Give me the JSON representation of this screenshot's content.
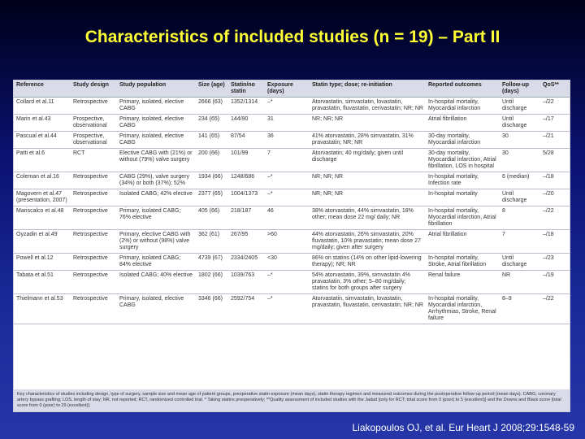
{
  "title": "Characteristics of included studies (n = 19) – Part II",
  "table": {
    "headers": [
      "Reference",
      "Study design",
      "Study population",
      "Size (age)",
      "Statin/no statin",
      "Exposure (days)",
      "Statin type; dose; re-initiation",
      "Reported outcomes",
      "Follow-up (days)",
      "QoS**"
    ],
    "rows": [
      [
        "Collard et al.11",
        "Retrospective",
        "Primary, isolated, elective CABG",
        "2666 (63)",
        "1352/1314",
        "–*",
        "Atorvastatin, simvastatin, lovastatin, pravastatin, fluvastatin, cerivastatin; NR; NR",
        "In-hospital mortality, Myocardial infarction",
        "Until discharge",
        "–/22"
      ],
      [
        "Marin et al.43",
        "Prospective, observational",
        "Primary, isolated, elective CABG",
        "234 (65)",
        "144/90",
        "31",
        "NR; NR; NR",
        "Atrial fibrillation",
        "Until discharge",
        "–/17"
      ],
      [
        "Pascual et al.44",
        "Prospective, observational",
        "Primary, isolated, elective CABG",
        "141 (65)",
        "87/54",
        "36",
        "41% atorvastatin, 28% simvastatin, 31% pravastatin; NR; NR",
        "30-day mortality, Myocardial infarction",
        "30",
        "–/21"
      ],
      [
        "Patti et al.6",
        "RCT",
        "Elective CABG with (21%) or without (79%) valve surgery",
        "200 (66)",
        "101/99",
        "7",
        "Atorvastatin; 40 mg/daily; given until discharge",
        "30-day mortality, Myocardial infarction, Atrial fibrillation, LOS in hospital",
        "30",
        "5/28"
      ],
      [
        "Coleman et al.16",
        "Retrospective",
        "CABG (29%), valve surgery (34%) or both (37%); 52%",
        "1934 (66)",
        "1248/686",
        "–*",
        "NR; NR; NR",
        "In-hospital mortality, Infection rate",
        "6 (median)",
        "–/18"
      ],
      [
        "Magovern et al.47 (presentation, 2007)",
        "Retrospective",
        "Isolated CABG; 42% elective",
        "2377 (65)",
        "1004/1373",
        "–*",
        "NR; NR; NR",
        "In-hospital mortality",
        "Until discharge",
        "–/20"
      ],
      [
        "Mariscalco et al.48",
        "Retrospective",
        "Primary, isolated CABG; 76% elective",
        "405 (66)",
        "218/187",
        "46",
        "38% atorvastatin, 44% simvastatin, 18% other; mean dose 22 mg/ daily; NR",
        "In-hospital mortality, Myocardial infarction, Atrial fibrillation",
        "8",
        "–/22"
      ],
      [
        "Oyzadin et al.49",
        "Retrospective",
        "Primary, elective CABG with (2%) or without (98%) valve surgery",
        "362 (61)",
        "267/95",
        ">60",
        "44% atorvastatin, 26% simvastatin, 20% fluvastatin, 10% pravastatin; mean dose 27 mg/daily; given after surgery",
        "Atrial fibrillation",
        "7",
        "–/18"
      ],
      [
        "Powell et al.12",
        "Retrospective",
        "Primary, isolated CABG; 84% elective",
        "4739 (67)",
        "2334/2405",
        "<30",
        "86% on statins (14% on other lipid-lowering therapy); NR; NR",
        "In-hospital mortality, Stroke, Atrial fibrillation",
        "Until discharge",
        "–/23"
      ],
      [
        "Tabata et al.51",
        "Retrospective",
        "Isolated CABG; 40% elective",
        "1802 (66)",
        "1039/763",
        "–*",
        "54% atorvastatin, 39%, simvastatin 4% pravastatin, 3% other; 5–80 mg/daily; statins for both groups after surgery",
        "Renal failure",
        "NR",
        "–/19"
      ],
      [
        "Thielmann et al.53",
        "Retrospective",
        "Primary, isolated, elective CABG",
        "3346 (66)",
        "2592/754",
        "–*",
        "Atorvastatin, simvastatin, lovastatin, pravastatin, fluvastatin, cerivastatin; NR; NR",
        "In-hospital mortality, Myocardial infarction, Arrhythmias, Stroke, Renal failure",
        "8–9",
        "–/22"
      ]
    ]
  },
  "footnote": "Key characteristics of studies including design, type of surgery, sample size and mean age of patient groups, preoperative statin exposure (mean days), statin therapy regimen and measured outcomes during the postoperative follow-up period (mean days). CABG, coronary artery bypass grafting; LOS, length of stay; NR, not reported; RCT, randomized controlled trial. * Taking statins preoperatively; **Quality assessment of included studies with the Jadad [only for RCT; total score from 0 (poor) to 5 (excellent)] and the Downs and Black score [total score from 0 (poor) to 29 (excellent)].",
  "citation": "Liakopoulos OJ, et al. Eur Heart J 2008;29:1548-59"
}
